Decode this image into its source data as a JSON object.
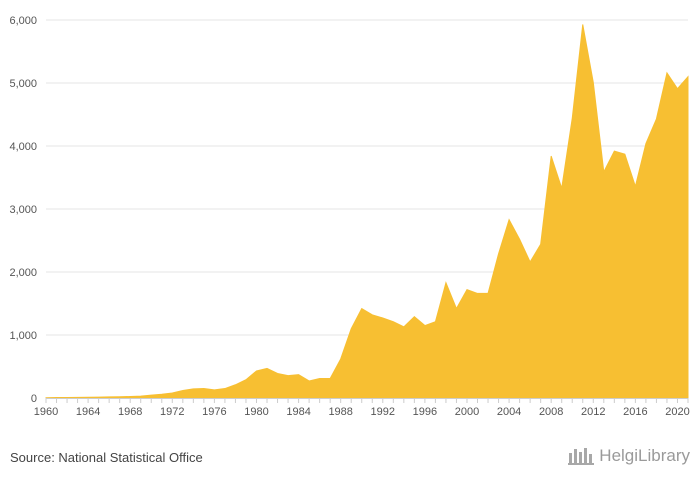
{
  "chart_data": {
    "type": "area",
    "title": "",
    "xlabel": "",
    "ylabel": "",
    "ylim": [
      0,
      6000
    ],
    "xlim": [
      1960,
      2021
    ],
    "grid": true,
    "legend": "none",
    "colors": {
      "area": "#f7bf32",
      "grid": "#e6e6e6",
      "axis": "#cccccc",
      "label": "#555555"
    },
    "y_ticks": [
      0,
      1000,
      2000,
      3000,
      4000,
      5000,
      6000
    ],
    "y_tick_labels": [
      "0",
      "1,000",
      "2,000",
      "3,000",
      "4,000",
      "5,000",
      "6,000"
    ],
    "x_ticks": [
      1960,
      1964,
      1968,
      1972,
      1976,
      1980,
      1984,
      1988,
      1992,
      1996,
      2000,
      2004,
      2008,
      2012,
      2016,
      2020
    ],
    "x": [
      1960,
      1961,
      1962,
      1963,
      1964,
      1965,
      1966,
      1967,
      1968,
      1969,
      1970,
      1971,
      1972,
      1973,
      1974,
      1975,
      1976,
      1977,
      1978,
      1979,
      1980,
      1981,
      1982,
      1983,
      1984,
      1985,
      1986,
      1987,
      1988,
      1989,
      1990,
      1991,
      1992,
      1993,
      1994,
      1995,
      1996,
      1997,
      1998,
      1999,
      2000,
      2001,
      2002,
      2003,
      2004,
      2005,
      2006,
      2007,
      2008,
      2009,
      2010,
      2011,
      2012,
      2013,
      2014,
      2015,
      2016,
      2017,
      2018,
      2019,
      2020,
      2021
    ],
    "series": [
      {
        "values": [
          5,
          7,
          8,
          10,
          12,
          14,
          17,
          20,
          24,
          30,
          45,
          60,
          80,
          120,
          145,
          150,
          130,
          150,
          210,
          290,
          430,
          470,
          390,
          355,
          370,
          270,
          310,
          310,
          620,
          1100,
          1420,
          1320,
          1270,
          1210,
          1130,
          1290,
          1150,
          1210,
          1830,
          1420,
          1720,
          1660,
          1660,
          2290,
          2830,
          2520,
          2160,
          2440,
          3840,
          3330,
          4440,
          5930,
          5010,
          3590,
          3920,
          3870,
          3360,
          4040,
          4430,
          5160,
          4910,
          5100
        ]
      }
    ]
  },
  "footer": {
    "source": "Source: National Statistical Office",
    "brand": "HelgiLibrary"
  }
}
